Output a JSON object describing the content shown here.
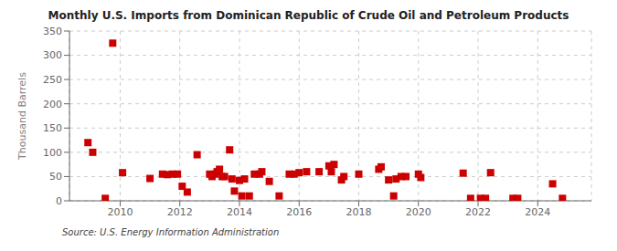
{
  "chart_data": {
    "type": "scatter",
    "title": "Monthly U.S. Imports from Dominican Republic of Crude Oil and Petroleum Products",
    "ylabel": "Thousand Barrels",
    "source": "Source: U.S. Energy Information Administration",
    "x": [
      2008.92,
      2009.08,
      2009.5,
      2009.75,
      2010.08,
      2011.0,
      2011.42,
      2011.58,
      2011.75,
      2011.92,
      2012.08,
      2012.25,
      2012.58,
      2013.0,
      2013.08,
      2013.17,
      2013.25,
      2013.33,
      2013.42,
      2013.5,
      2013.67,
      2013.75,
      2013.83,
      2014.0,
      2014.08,
      2014.17,
      2014.33,
      2014.5,
      2014.67,
      2014.75,
      2015.0,
      2015.33,
      2015.67,
      2015.83,
      2016.0,
      2016.25,
      2016.67,
      2017.0,
      2017.08,
      2017.17,
      2017.42,
      2017.5,
      2018.0,
      2018.67,
      2018.75,
      2019.0,
      2019.17,
      2019.25,
      2019.42,
      2019.58,
      2020.0,
      2020.08,
      2021.5,
      2021.75,
      2022.08,
      2022.25,
      2022.42,
      2023.17,
      2023.33,
      2024.5,
      2024.83
    ],
    "values": [
      120,
      100,
      5,
      325,
      58,
      46,
      55,
      54,
      55,
      55,
      30,
      18,
      95,
      55,
      50,
      55,
      60,
      65,
      50,
      50,
      105,
      45,
      20,
      42,
      10,
      45,
      10,
      55,
      55,
      60,
      40,
      10,
      55,
      55,
      58,
      60,
      60,
      72,
      60,
      75,
      43,
      50,
      55,
      65,
      70,
      43,
      10,
      45,
      50,
      50,
      55,
      48,
      57,
      5,
      5,
      5,
      58,
      5,
      5,
      35,
      5
    ],
    "color": "#cc0000",
    "marker": "square",
    "xlim": [
      2008.3,
      2025.8
    ],
    "xticks": [
      2010,
      2012,
      2014,
      2016,
      2018,
      2020,
      2022,
      2024
    ],
    "ylim": [
      0,
      350
    ],
    "yticks": [
      0,
      50,
      100,
      150,
      200,
      250,
      300,
      350
    ],
    "grid": true
  }
}
